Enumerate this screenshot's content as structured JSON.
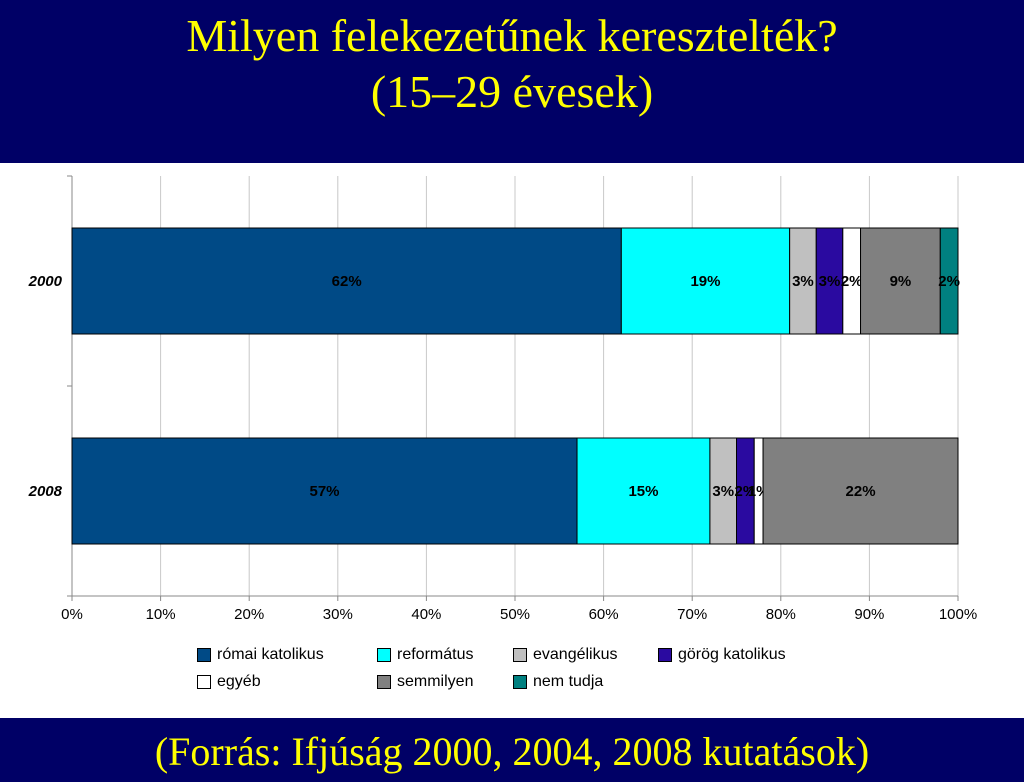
{
  "title": {
    "line1": "Milyen felekezetűnek keresztelték?",
    "line2": "(15–29 évesek)"
  },
  "footer": "(Forrás: Ifjúság 2000, 2004, 2008 kutatások)",
  "colors": {
    "background": "#000066",
    "title": "#ffff00",
    "panel": "#ffffff"
  },
  "chart_data": {
    "type": "bar",
    "orientation": "horizontal",
    "stacked": "percent",
    "categories": [
      "2000",
      "2008"
    ],
    "series": [
      {
        "name": "római katolikus",
        "color": "#004a86",
        "values": [
          62,
          57
        ],
        "labels": [
          "62%",
          "57%"
        ]
      },
      {
        "name": "református",
        "color": "#00ffff",
        "values": [
          19,
          15
        ],
        "labels": [
          "19%",
          "15%"
        ]
      },
      {
        "name": "evangélikus",
        "color": "#c0c0c0",
        "values": [
          3,
          3
        ],
        "labels": [
          "3%",
          "3%"
        ]
      },
      {
        "name": "görög katolikus",
        "color": "#2a0aa0",
        "values": [
          3,
          2
        ],
        "labels": [
          "3%",
          "2%"
        ]
      },
      {
        "name": "egyéb",
        "color": "#ffffff",
        "values": [
          2,
          1
        ],
        "labels": [
          "2%",
          "1%"
        ]
      },
      {
        "name": "semmilyen",
        "color": "#808080",
        "values": [
          9,
          22
        ],
        "labels": [
          "9%",
          "22%"
        ]
      },
      {
        "name": "nem tudja",
        "color": "#008080",
        "values": [
          2,
          0
        ],
        "labels": [
          "2%",
          ""
        ]
      }
    ],
    "xlim": [
      0,
      100
    ],
    "xticks": [
      "0%",
      "10%",
      "20%",
      "30%",
      "40%",
      "50%",
      "60%",
      "70%",
      "80%",
      "90%",
      "100%"
    ],
    "grid": true,
    "legend_position": "bottom"
  }
}
